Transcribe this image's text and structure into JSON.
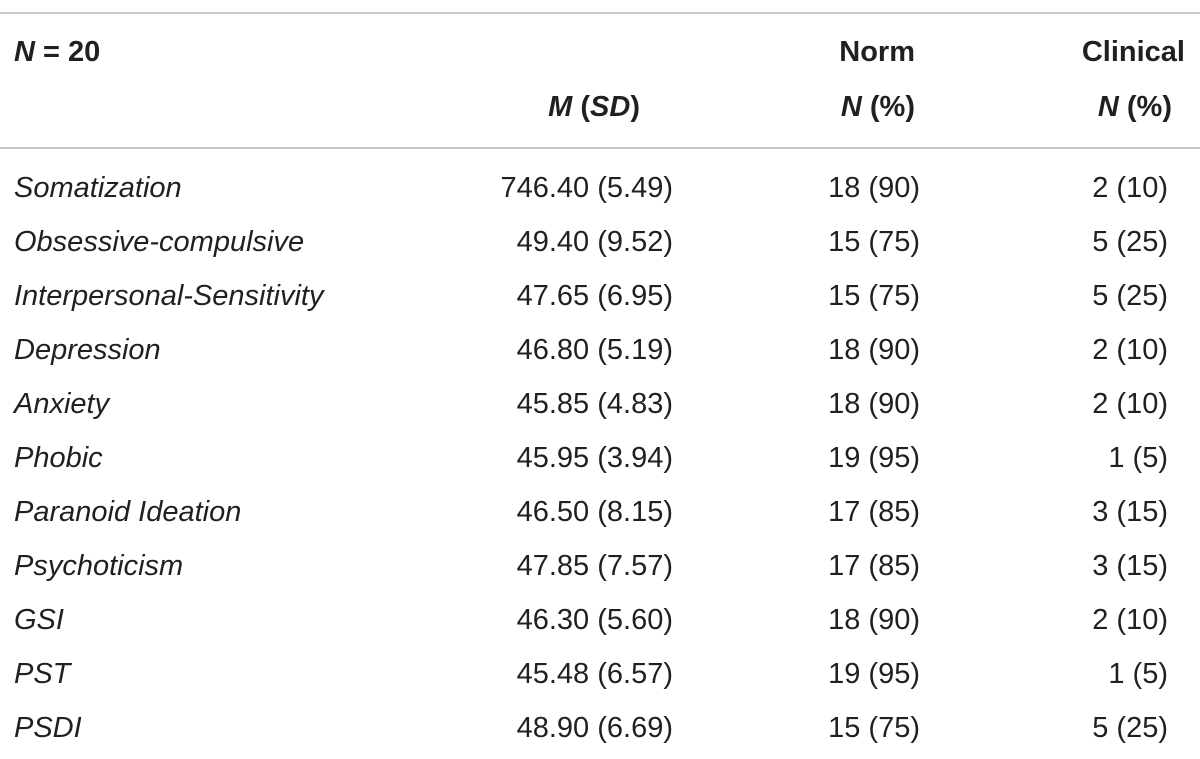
{
  "header": {
    "sample": [
      "N",
      " = 20"
    ],
    "mean_sd": [
      "M",
      " (",
      "SD",
      ")"
    ],
    "norm_group": "Norm",
    "norm_count": [
      "N",
      " (%)"
    ],
    "clinical_group": "Clinical",
    "clinical_count": [
      "N",
      " (%)"
    ]
  },
  "table": {
    "rows": [
      [
        "Somatization",
        "746.40 (5.49)",
        "18 (90)",
        "2 (10)"
      ],
      [
        "Obsessive-compulsive",
        "49.40 (9.52)",
        "15 (75)",
        "5 (25)"
      ],
      [
        "Interpersonal-Sensitivity",
        "47.65 (6.95)",
        "15 (75)",
        "5 (25)"
      ],
      [
        "Depression",
        "46.80 (5.19)",
        "18 (90)",
        "2 (10)"
      ],
      [
        "Anxiety",
        "45.85 (4.83)",
        "18 (90)",
        "2 (10)"
      ],
      [
        "Phobic",
        "45.95 (3.94)",
        "19 (95)",
        "1 (5)"
      ],
      [
        "Paranoid Ideation",
        "46.50 (8.15)",
        "17 (85)",
        "3 (15)"
      ],
      [
        "Psychoticism",
        "47.85 (7.57)",
        "17 (85)",
        "3 (15)"
      ],
      [
        "GSI",
        "46.30 (5.60)",
        "18 (90)",
        "2 (10)"
      ],
      [
        "PST",
        "45.48 (6.57)",
        "19 (95)",
        "1 (5)"
      ],
      [
        "PSDI",
        "48.90 (6.69)",
        "15 (75)",
        "5 (25)"
      ]
    ]
  }
}
